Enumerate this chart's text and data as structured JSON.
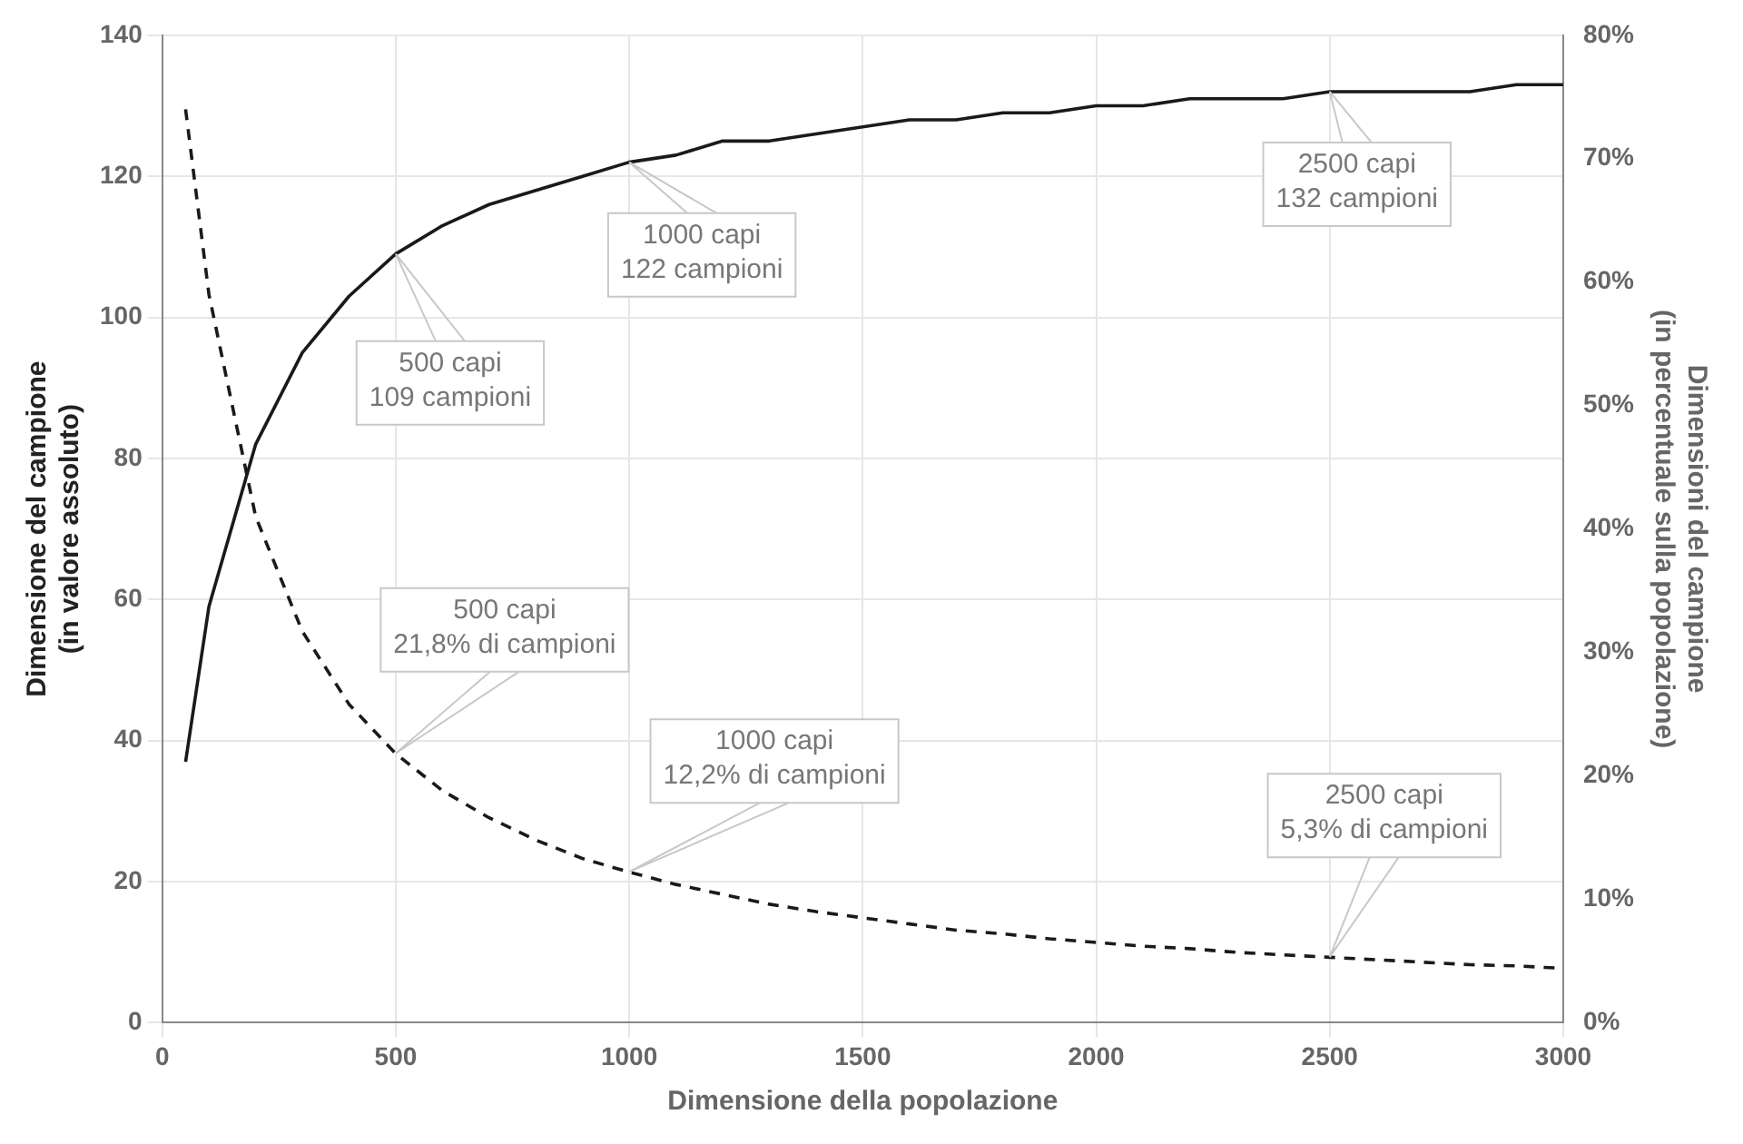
{
  "chart_data": {
    "type": "line",
    "xlabel": "Dimensione della popolazione",
    "ylabel": "Dimensione del campione\n(in valore assoluto)",
    "y2label": "Dimensioni del campione\n(in percentuale sulla popolazione)",
    "x": [
      50,
      100,
      200,
      300,
      400,
      500,
      600,
      700,
      800,
      900,
      1000,
      1100,
      1200,
      1300,
      1400,
      1500,
      1600,
      1700,
      1800,
      1900,
      2000,
      2100,
      2200,
      2300,
      2400,
      2500,
      2600,
      2700,
      2800,
      2900,
      3000
    ],
    "series": [
      {
        "color": "#1a1a1a",
        "line_style": "solid",
        "values": [
          37,
          59,
          82,
          95,
          103,
          109,
          113,
          116,
          118,
          120,
          122,
          123,
          125,
          125,
          126,
          127,
          128,
          128,
          129,
          129,
          130,
          130,
          131,
          131,
          131,
          132,
          132,
          132,
          132,
          133,
          133
        ]
      },
      {
        "color": "#1a1a1a",
        "line_style": "dashed",
        "axis": "y2",
        "values": [
          74,
          59,
          41,
          31.7,
          25.8,
          21.8,
          18.8,
          16.6,
          14.8,
          13.3,
          12.2,
          11.2,
          10.4,
          9.6,
          9,
          8.5,
          8,
          7.5,
          7.2,
          6.8,
          6.5,
          6.2,
          6,
          5.7,
          5.5,
          5.3,
          5.1,
          4.9,
          4.7,
          4.6,
          4.4
        ]
      }
    ],
    "xlim": [
      0,
      3000
    ],
    "xticks": [
      0,
      500,
      1000,
      1500,
      2000,
      2500,
      3000
    ],
    "ylim": [
      0,
      140
    ],
    "yticks": [
      0,
      20,
      40,
      60,
      80,
      100,
      120,
      140
    ],
    "y2lim": [
      0,
      80
    ],
    "y2ticks": [
      {
        "value": 0,
        "label": "0%"
      },
      {
        "value": 10,
        "label": "10%"
      },
      {
        "value": 20,
        "label": "20%"
      },
      {
        "value": 30,
        "label": "30%"
      },
      {
        "value": 40,
        "label": "40%"
      },
      {
        "value": 50,
        "label": "50%"
      },
      {
        "value": 60,
        "label": "60%"
      },
      {
        "value": 70,
        "label": "70%"
      },
      {
        "value": 80,
        "label": "80%"
      }
    ],
    "grid": true,
    "legend": false,
    "marker": "none",
    "annotations": [
      {
        "text": "500 capi\n109 campioni",
        "x": 500,
        "y": 109
      },
      {
        "text": "1000 capi\n122 campioni",
        "x": 1000,
        "y": 122
      },
      {
        "text": "2500 capi\n132 campioni",
        "x": 2500,
        "y": 132
      },
      {
        "text": "500 capi\n21,8% di campioni",
        "x": 500,
        "y": 38.2
      },
      {
        "text": "1000 capi\n12,2% di campioni",
        "x": 1000,
        "y": 21.4
      },
      {
        "text": "2500 capi\n5,3% di campioni",
        "x": 2500,
        "y": 9.3
      }
    ]
  }
}
